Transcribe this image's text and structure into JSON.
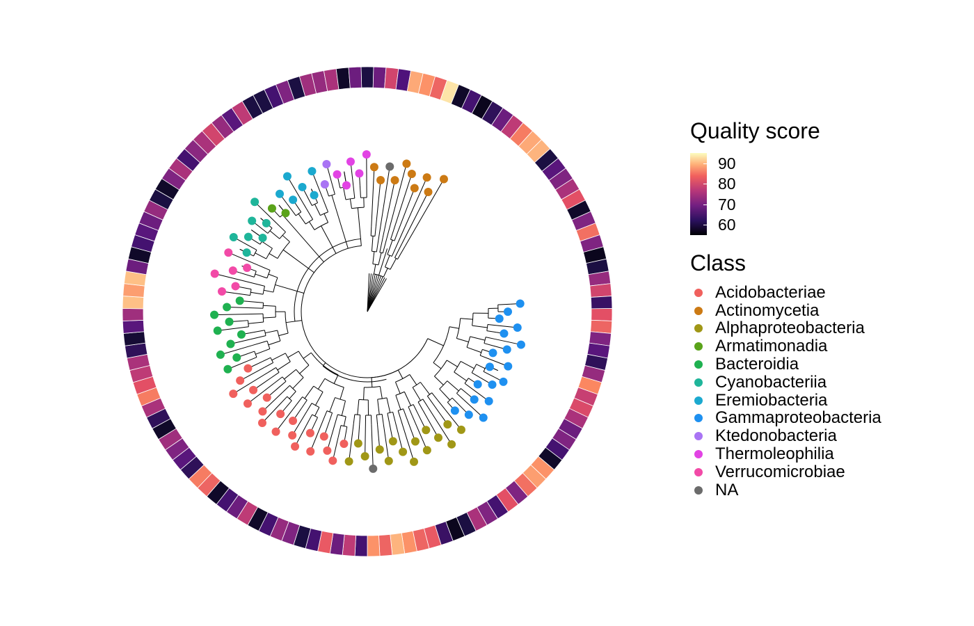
{
  "figure": {
    "quality_legend": {
      "title": "Quality score",
      "ticks": [
        {
          "value": 90,
          "label": "90"
        },
        {
          "value": 80,
          "label": "80"
        },
        {
          "value": 70,
          "label": "70"
        },
        {
          "value": 60,
          "label": "60"
        }
      ],
      "range": [
        55,
        95
      ],
      "colormap": "magma"
    },
    "class_legend": {
      "title": "Class",
      "items": [
        {
          "label": "Acidobacteriae",
          "color": "#f0605d"
        },
        {
          "label": "Actinomycetia",
          "color": "#cc7a14"
        },
        {
          "label": "Alphaproteobacteria",
          "color": "#a09716"
        },
        {
          "label": "Armatimonadia",
          "color": "#5aa31a"
        },
        {
          "label": "Bacteroidia",
          "color": "#1fb150"
        },
        {
          "label": "Cyanobacteriia",
          "color": "#1fb59a"
        },
        {
          "label": "Eremiobacteria",
          "color": "#1ba9cf"
        },
        {
          "label": "Gammaproteobacteria",
          "color": "#1e90f0"
        },
        {
          "label": "Ktedonobacteria",
          "color": "#a974f4"
        },
        {
          "label": "Thermoleophilia",
          "color": "#e243e4"
        },
        {
          "label": "Verrucomicrobiae",
          "color": "#f24aa7"
        },
        {
          "label": "NA",
          "color": "#6b6b6b"
        }
      ]
    },
    "tree": {
      "tip_order_clockwise_from_right": [
        "Gammaproteobacteria",
        "Gammaproteobacteria",
        "Gammaproteobacteria",
        "Gammaproteobacteria",
        "Gammaproteobacteria",
        "Gammaproteobacteria",
        "Gammaproteobacteria",
        "Gammaproteobacteria",
        "Gammaproteobacteria",
        "Gammaproteobacteria",
        "Gammaproteobacteria",
        "Gammaproteobacteria",
        "Gammaproteobacteria",
        "Gammaproteobacteria",
        "Gammaproteobacteria",
        "Gammaproteobacteria",
        "Gammaproteobacteria",
        "Gammaproteobacteria",
        "Alphaproteobacteria",
        "Alphaproteobacteria",
        "Alphaproteobacteria",
        "Alphaproteobacteria",
        "Alphaproteobacteria",
        "Alphaproteobacteria",
        "Alphaproteobacteria",
        "Alphaproteobacteria",
        "Alphaproteobacteria",
        "Alphaproteobacteria",
        "Alphaproteobacteria",
        "Alphaproteobacteria",
        "NA",
        "Alphaproteobacteria",
        "Alphaproteobacteria",
        "Alphaproteobacteria",
        "Acidobacteriae",
        "Acidobacteriae",
        "Acidobacteriae",
        "Acidobacteriae",
        "Acidobacteriae",
        "Acidobacteriae",
        "Acidobacteriae",
        "Acidobacteriae",
        "Acidobacteriae",
        "Acidobacteriae",
        "Acidobacteriae",
        "Acidobacteriae",
        "Acidobacteriae",
        "Acidobacteriae",
        "Acidobacteriae",
        "Acidobacteriae",
        "Acidobacteriae",
        "Acidobacteriae",
        "Acidobacteriae",
        "Bacteroidia",
        "Bacteroidia",
        "Bacteroidia",
        "Bacteroidia",
        "Bacteroidia",
        "Bacteroidia",
        "Bacteroidia",
        "Bacteroidia",
        "Bacteroidia",
        "Bacteroidia",
        "Verrucomicrobiae",
        "Verrucomicrobiae",
        "Verrucomicrobiae",
        "Verrucomicrobiae",
        "Verrucomicrobiae",
        "Verrucomicrobiae",
        "Cyanobacteriia",
        "Cyanobacteriia",
        "Cyanobacteriia",
        "Cyanobacteriia",
        "Cyanobacteriia",
        "Cyanobacteriia",
        "Cyanobacteriia",
        "Armatimonadia",
        "Armatimonadia",
        "Eremiobacteria",
        "Eremiobacteria",
        "Eremiobacteria",
        "Eremiobacteria",
        "Eremiobacteria",
        "Eremiobacteria",
        "Ktedonobacteria",
        "Ktedonobacteria",
        "Thermoleophilia",
        "Thermoleophilia",
        "Thermoleophilia",
        "Thermoleophilia",
        "Thermoleophilia",
        "Actinomycetia",
        "Actinomycetia",
        "NA",
        "Actinomycetia",
        "Actinomycetia",
        "Actinomycetia",
        "Actinomycetia",
        "Actinomycetia",
        "Actinomycetia",
        "Actinomycetia"
      ]
    },
    "quality_ring_clockwise_from_top": [
      60,
      68,
      78,
      65,
      88,
      86,
      82,
      93,
      58,
      64,
      57,
      62,
      68,
      76,
      84,
      88,
      89,
      60,
      66,
      70,
      74,
      80,
      58,
      70,
      83,
      70,
      57,
      60,
      72,
      78,
      63,
      80,
      82,
      70,
      66,
      62,
      72,
      85,
      77,
      79,
      74,
      68,
      70,
      64,
      58,
      86,
      87,
      83,
      70,
      80,
      64,
      70,
      74,
      60,
      57,
      63,
      81,
      82,
      86,
      89,
      82,
      86,
      64,
      76,
      68,
      81,
      64,
      60,
      70,
      72,
      64,
      58,
      76,
      68,
      64,
      58,
      82,
      84,
      62,
      66,
      70,
      73,
      58,
      62,
      74,
      84,
      80,
      76,
      74,
      62,
      59,
      66,
      73,
      90,
      87,
      90,
      68,
      58,
      64,
      66,
      68,
      72,
      60,
      58,
      70,
      74,
      64,
      71,
      74,
      78,
      72,
      66,
      76,
      60,
      60,
      64,
      70,
      60,
      73,
      72,
      74,
      58,
      68
    ]
  }
}
